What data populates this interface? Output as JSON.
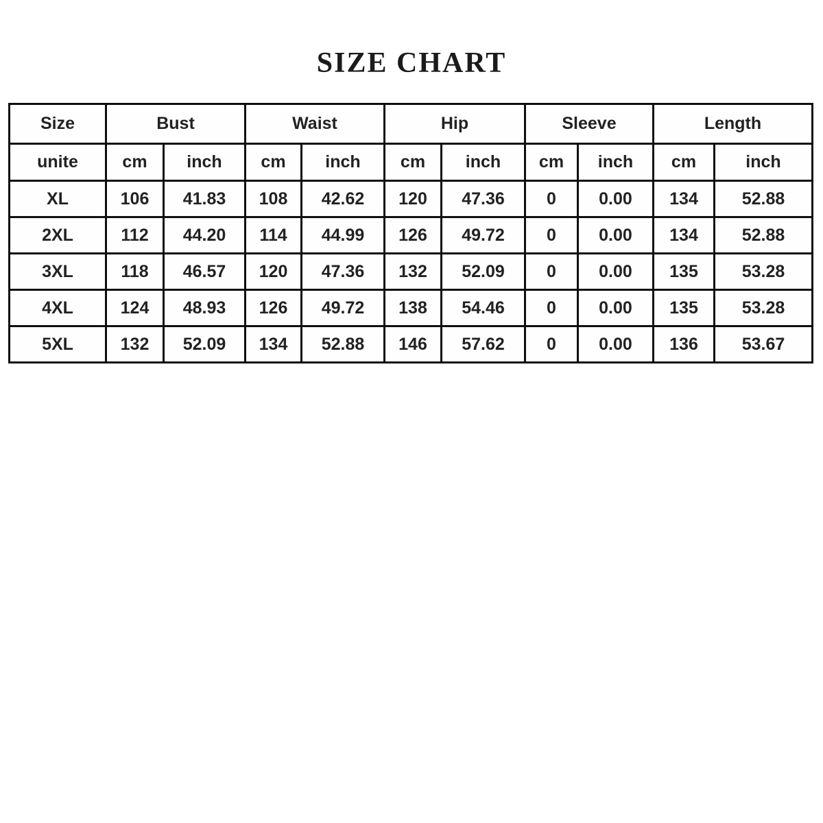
{
  "title": "SIZE CHART",
  "chart_data": {
    "type": "table",
    "title": "SIZE CHART",
    "column_groups": [
      {
        "label": "Size",
        "colspan": 1
      },
      {
        "label": "Bust",
        "colspan": 2
      },
      {
        "label": "Waist",
        "colspan": 2
      },
      {
        "label": "Hip",
        "colspan": 2
      },
      {
        "label": "Sleeve",
        "colspan": 2
      },
      {
        "label": "Length",
        "colspan": 2
      }
    ],
    "unit_row": [
      "unite",
      "cm",
      "inch",
      "cm",
      "inch",
      "cm",
      "inch",
      "cm",
      "inch",
      "cm",
      "inch"
    ],
    "rows": [
      [
        "XL",
        "106",
        "41.83",
        "108",
        "42.62",
        "120",
        "47.36",
        "0",
        "0.00",
        "134",
        "52.88"
      ],
      [
        "2XL",
        "112",
        "44.20",
        "114",
        "44.99",
        "126",
        "49.72",
        "0",
        "0.00",
        "134",
        "52.88"
      ],
      [
        "3XL",
        "118",
        "46.57",
        "120",
        "47.36",
        "132",
        "52.09",
        "0",
        "0.00",
        "135",
        "53.28"
      ],
      [
        "4XL",
        "124",
        "48.93",
        "126",
        "49.72",
        "138",
        "54.46",
        "0",
        "0.00",
        "135",
        "53.28"
      ],
      [
        "5XL",
        "132",
        "52.09",
        "134",
        "52.88",
        "146",
        "57.62",
        "0",
        "0.00",
        "136",
        "53.67"
      ]
    ],
    "colors": {
      "border": "#0f0f0f",
      "text": "#222222",
      "background": "#ffffff"
    }
  }
}
